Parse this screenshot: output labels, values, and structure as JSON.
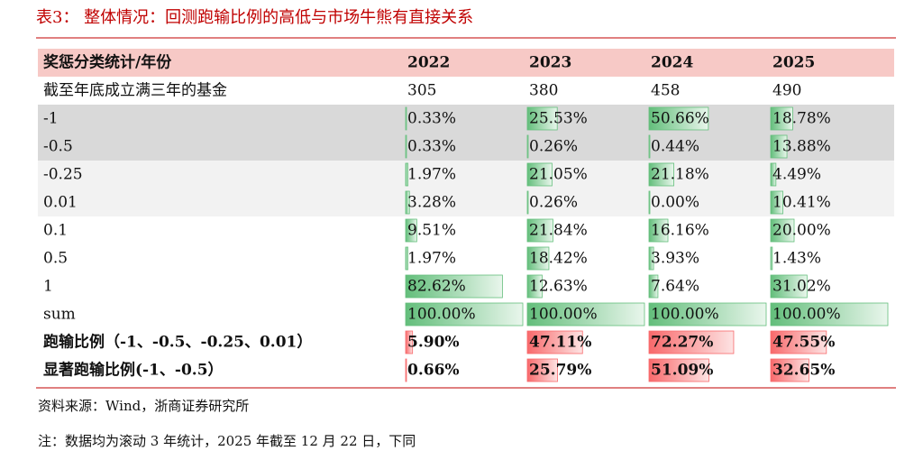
{
  "title": "表3：  整体情况：回测跑输比例的高低与市场牛熊有直接关系",
  "table": {
    "header": [
      "奖惩分类统计/年份",
      "2022",
      "2023",
      "2024",
      "2025"
    ],
    "rows": [
      [
        "截至年底成立满三年的基金",
        "305",
        "380",
        "458",
        "490"
      ],
      [
        "-1",
        "0.33%",
        "25.53%",
        "50.66%",
        "18.78%"
      ],
      [
        "-0.5",
        "0.33%",
        "0.26%",
        "0.44%",
        "13.88%"
      ],
      [
        "-0.25",
        "1.97%",
        "21.05%",
        "21.18%",
        "4.49%"
      ],
      [
        "0.01",
        "3.28%",
        "0.26%",
        "0.00%",
        "10.41%"
      ],
      [
        "0.1",
        "9.51%",
        "21.84%",
        "16.16%",
        "20.00%"
      ],
      [
        "0.5",
        "1.97%",
        "18.42%",
        "3.93%",
        "1.43%"
      ],
      [
        "1",
        "82.62%",
        "12.63%",
        "7.64%",
        "31.02%"
      ],
      [
        "sum",
        "100.00%",
        "100.00%",
        "100.00%",
        "100.00%"
      ],
      [
        "跑输比例（-1、-0.5、-0.25、0.01）",
        "5.90%",
        "47.11%",
        "72.27%",
        "47.55%"
      ],
      [
        "显著跑输比例(-1、-0.5）",
        "0.66%",
        "25.79%",
        "51.09%",
        "32.65%"
      ]
    ]
  },
  "source": "资料来源：Wind，浙商证券研究所",
  "note": "注：数据均为滚动 3 年统计，2025 年截至 12 月 22 日，下同"
}
